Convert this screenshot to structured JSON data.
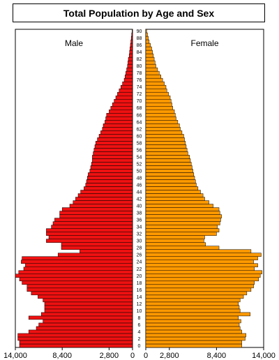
{
  "chart_data": {
    "type": "population-pyramid",
    "title": "Total Population by Age and Sex",
    "left_label": "Male",
    "right_label": "Female",
    "colors": {
      "male": "#ee1111",
      "female": "#ff9900",
      "outline": "#000000"
    },
    "xlim": [
      0,
      14000
    ],
    "x_tick_labels_male": [
      "14,000",
      "8,400",
      "2,800",
      "0"
    ],
    "x_tick_values_male": [
      14000,
      8400,
      2800,
      0
    ],
    "x_tick_labels_female": [
      "0",
      "2,800",
      "8,400",
      "14,000"
    ],
    "x_tick_values_female": [
      0,
      2800,
      8400,
      14000
    ],
    "age_labels": [
      "0",
      "2",
      "4",
      "6",
      "8",
      "10",
      "12",
      "14",
      "16",
      "18",
      "20",
      "22",
      "24",
      "26",
      "28",
      "30",
      "32",
      "34",
      "36",
      "38",
      "40",
      "42",
      "44",
      "46",
      "48",
      "50",
      "52",
      "54",
      "56",
      "58",
      "60",
      "62",
      "64",
      "66",
      "68",
      "70",
      "72",
      "74",
      "76",
      "78",
      "80",
      "82",
      "84",
      "86",
      "88",
      "90"
    ],
    "ages": [
      0,
      1,
      2,
      3,
      4,
      5,
      6,
      7,
      8,
      9,
      10,
      11,
      12,
      13,
      14,
      15,
      16,
      17,
      18,
      19,
      20,
      21,
      22,
      23,
      24,
      25,
      26,
      27,
      28,
      29,
      30,
      31,
      32,
      33,
      34,
      35,
      36,
      37,
      38,
      39,
      40,
      41,
      42,
      43,
      44,
      45,
      46,
      47,
      48,
      49,
      50,
      51,
      52,
      53,
      54,
      55,
      56,
      57,
      58,
      59,
      60,
      61,
      62,
      63,
      64,
      65,
      66,
      67,
      68,
      69,
      70,
      71,
      72,
      73,
      74,
      75,
      76,
      77,
      78,
      79,
      80,
      81,
      82,
      83,
      84,
      85,
      86,
      87,
      88,
      89,
      90
    ],
    "male": [
      13500,
      13500,
      13700,
      13700,
      12400,
      11500,
      11200,
      10700,
      12400,
      10900,
      10500,
      10500,
      10500,
      10700,
      11300,
      12100,
      12600,
      12600,
      13200,
      13500,
      14000,
      13600,
      13000,
      12800,
      13300,
      13200,
      8900,
      6300,
      8500,
      8500,
      10300,
      10000,
      10300,
      10300,
      9700,
      9500,
      9300,
      8700,
      8700,
      8400,
      7500,
      7100,
      6800,
      6500,
      6200,
      5800,
      5600,
      5500,
      5400,
      5300,
      5100,
      5000,
      4900,
      4800,
      4800,
      4700,
      4600,
      4500,
      4400,
      4200,
      4000,
      3800,
      3600,
      3500,
      3300,
      3200,
      3100,
      2800,
      2600,
      2400,
      2200,
      2000,
      1800,
      1600,
      1400,
      1200,
      1000,
      900,
      800,
      700,
      600,
      550,
      500,
      400,
      350,
      300,
      250,
      200,
      150,
      100,
      50
    ],
    "female": [
      11400,
      11400,
      11800,
      11900,
      11400,
      11200,
      11100,
      11300,
      11000,
      12400,
      11200,
      11100,
      11000,
      11200,
      11600,
      12000,
      12500,
      12800,
      12900,
      13400,
      13600,
      13800,
      12900,
      13300,
      12800,
      13300,
      13700,
      12500,
      8700,
      7100,
      6900,
      7000,
      8400,
      8700,
      8500,
      8800,
      8900,
      9000,
      8800,
      8700,
      8000,
      7500,
      7000,
      6800,
      6500,
      6200,
      6000,
      5900,
      5800,
      5700,
      5600,
      5500,
      5400,
      5300,
      5200,
      5000,
      4900,
      4800,
      4700,
      4600,
      4500,
      4300,
      4100,
      4000,
      3800,
      3600,
      3500,
      3400,
      3200,
      3100,
      3000,
      2900,
      2700,
      2500,
      2400,
      2200,
      2000,
      1800,
      1600,
      1400,
      1200,
      1100,
      1000,
      900,
      800,
      700,
      550,
      400,
      300,
      200,
      100
    ]
  }
}
